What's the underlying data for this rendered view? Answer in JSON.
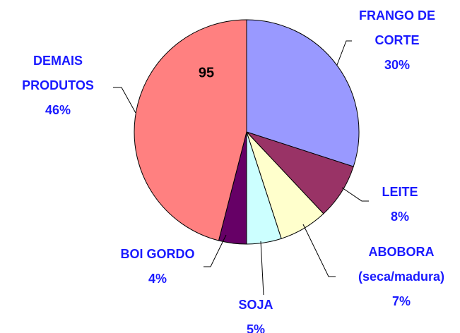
{
  "chart_data": {
    "type": "pie",
    "categories": [
      "FRANGO DE CORTE",
      "LEITE",
      "ABOBORA (seca/madura)",
      "SOJA",
      "BOI GORDO",
      "DEMAIS PRODUTOS"
    ],
    "values": [
      30,
      8,
      7,
      5,
      4,
      46
    ],
    "value_labels": [
      "30%",
      "8%",
      "7%",
      "5%",
      "4%",
      "46%"
    ],
    "colors": [
      "#9999ff",
      "#993366",
      "#ffffcc",
      "#ccffff",
      "#660066",
      "#ff8080"
    ],
    "annotations": [
      "95"
    ]
  }
}
